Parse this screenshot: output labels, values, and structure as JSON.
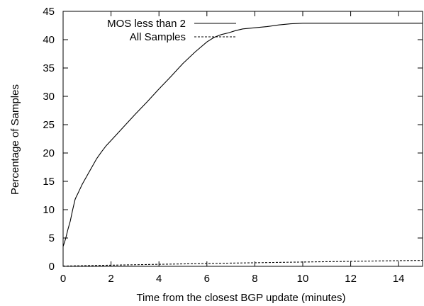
{
  "chart_data": {
    "type": "line",
    "title": "",
    "xlabel": "Time from the closest BGP update (minutes)",
    "ylabel": "Percentage of Samples",
    "xlim": [
      0,
      15
    ],
    "ylim": [
      0,
      45
    ],
    "xticks": [
      0,
      2,
      4,
      6,
      8,
      10,
      12,
      14
    ],
    "yticks": [
      0,
      5,
      10,
      15,
      20,
      25,
      30,
      35,
      40,
      45
    ],
    "grid": false,
    "legend_position": "top-right",
    "series": [
      {
        "name": "MOS less than 2",
        "style": "solid",
        "color": "#000000",
        "x": [
          0,
          0.1,
          0.2,
          0.3,
          0.4,
          0.5,
          0.55,
          0.6,
          0.7,
          0.8,
          1.0,
          1.2,
          1.4,
          1.6,
          1.8,
          2.0,
          2.5,
          3.0,
          3.5,
          4.0,
          4.5,
          5.0,
          5.5,
          6.0,
          6.3,
          6.6,
          6.9,
          7.2,
          7.5,
          8.0,
          8.5,
          9.0,
          9.5,
          10.0,
          11.0,
          12.0,
          13.0,
          14.0,
          15.0
        ],
        "y": [
          3.5,
          4.8,
          6.5,
          8.0,
          10.0,
          11.8,
          12.3,
          12.7,
          13.6,
          14.5,
          16.0,
          17.5,
          19.0,
          20.2,
          21.3,
          22.2,
          24.5,
          26.8,
          29.0,
          31.3,
          33.5,
          35.8,
          37.8,
          39.6,
          40.4,
          40.9,
          41.2,
          41.6,
          41.9,
          42.1,
          42.3,
          42.6,
          42.8,
          42.9,
          42.9,
          42.9,
          42.9,
          42.9,
          42.9
        ]
      },
      {
        "name": "All Samples",
        "style": "dashed",
        "color": "#000000",
        "x": [
          0,
          1,
          2,
          3,
          4,
          5,
          6,
          7,
          8,
          9,
          10,
          11,
          12,
          13,
          14,
          15
        ],
        "y": [
          0.05,
          0.12,
          0.2,
          0.28,
          0.36,
          0.43,
          0.5,
          0.57,
          0.63,
          0.7,
          0.76,
          0.82,
          0.88,
          0.94,
          1.0,
          1.05
        ]
      }
    ]
  }
}
